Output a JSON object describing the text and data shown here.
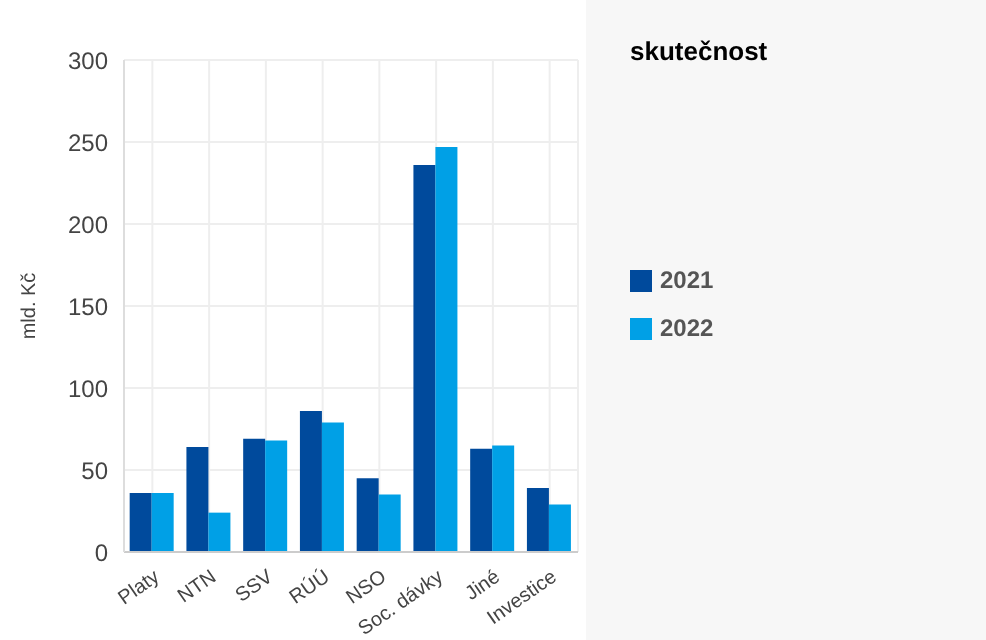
{
  "chart_data": {
    "type": "bar",
    "legend_title": "skutečnost",
    "ylabel": "mld. Kč",
    "categories": [
      "Platy",
      "NTN",
      "SSV",
      "RÚÚ",
      "NSO",
      "Soc. dávky",
      "Jiné",
      "Investice"
    ],
    "series": [
      {
        "name": "2021",
        "color": "#004a9c",
        "values": [
          36,
          64,
          69,
          86,
          45,
          236,
          63,
          39
        ]
      },
      {
        "name": "2022",
        "color": "#00a0e6",
        "values": [
          36,
          24,
          68,
          79,
          35,
          247,
          65,
          29
        ]
      }
    ],
    "ylim": [
      0,
      300
    ],
    "yticks": [
      0,
      50,
      100,
      150,
      200,
      250,
      300
    ],
    "grid": true,
    "legend": "right"
  }
}
